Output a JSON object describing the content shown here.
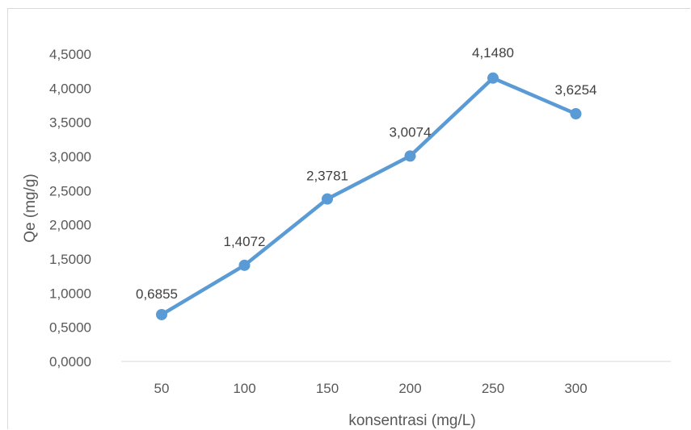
{
  "chart_data": {
    "type": "line",
    "title": "",
    "xlabel": "konsentrasi (mg/L)",
    "ylabel": "Qe (mg/g)",
    "categories": [
      "50",
      "100",
      "150",
      "200",
      "250",
      "300"
    ],
    "series": [
      {
        "values": [
          0.6855,
          1.4072,
          2.3781,
          3.0074,
          4.148,
          3.6254
        ],
        "data_labels": [
          "0,6855",
          "1,4072",
          "2,3781",
          "3,0074",
          "4,1480",
          "3,6254"
        ],
        "color": "#5B9BD5"
      }
    ],
    "ylim": [
      0,
      4.5
    ],
    "y_ticks": [
      "0,0000",
      "0,5000",
      "1,0000",
      "1,5000",
      "2,0000",
      "2,5000",
      "3,0000",
      "3,5000",
      "4,0000",
      "4,5000"
    ],
    "grid": false,
    "legend": "none"
  }
}
